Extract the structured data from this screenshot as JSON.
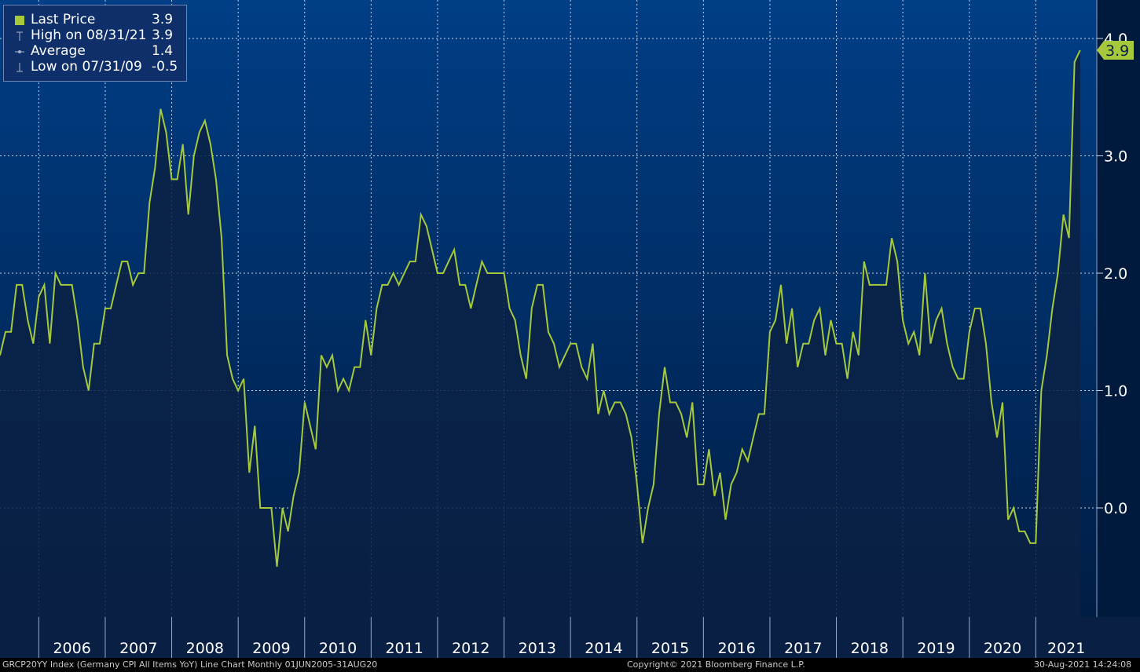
{
  "legend": {
    "items": [
      {
        "label": "Last Price",
        "value": "3.9",
        "icon": "filled-square-icon"
      },
      {
        "label": "High on 08/31/21",
        "value": "3.9",
        "icon": "high-marker-icon"
      },
      {
        "label": "Average",
        "value": "1.4",
        "icon": "average-marker-icon"
      },
      {
        "label": "Low on 07/31/09",
        "value": "-0.5",
        "icon": "low-marker-icon"
      }
    ]
  },
  "footer": {
    "left": "GRCP20YY Index (Germany CPI All Items YoY) Line Chart  Monthly 01JUN2005-31AUG20",
    "center": "Copyright© 2021 Bloomberg Finance L.P.",
    "right": "30-Aug-2021 14:24:08"
  },
  "colors": {
    "line": "#a6c93c",
    "background_top": "#003e86",
    "background_bottom": "#001f46",
    "fill": "#0b2144",
    "axis_bg": "#0a1f44"
  },
  "chart_data": {
    "type": "area",
    "title": "",
    "xlabel": "",
    "ylabel": "",
    "x_start": "2005-06",
    "x_end": "2021-08",
    "x_ticks": [
      "2006",
      "2007",
      "2008",
      "2009",
      "2010",
      "2011",
      "2012",
      "2013",
      "2014",
      "2015",
      "2016",
      "2017",
      "2018",
      "2019",
      "2020",
      "2021"
    ],
    "y_ticks": [
      "0.0",
      "1.0",
      "2.0",
      "3.0",
      "4.0"
    ],
    "ylim": [
      -0.9,
      4.2
    ],
    "grid": true,
    "y_axis_side": "right",
    "last_value_label": "3.9",
    "series": [
      {
        "name": "Last Price",
        "values": [
          1.3,
          1.5,
          1.5,
          1.9,
          1.9,
          1.6,
          1.4,
          1.8,
          1.9,
          1.4,
          2.0,
          1.9,
          1.9,
          1.9,
          1.6,
          1.2,
          1.0,
          1.4,
          1.4,
          1.7,
          1.7,
          1.9,
          2.1,
          2.1,
          1.9,
          2.0,
          2.0,
          2.6,
          2.9,
          3.4,
          3.2,
          2.8,
          2.8,
          3.1,
          2.5,
          3.0,
          3.2,
          3.3,
          3.1,
          2.8,
          2.3,
          1.3,
          1.1,
          1.0,
          1.1,
          0.3,
          0.7,
          0.0,
          0.0,
          0.0,
          -0.5,
          0.0,
          -0.2,
          0.1,
          0.3,
          0.9,
          0.7,
          0.5,
          1.3,
          1.2,
          1.3,
          1.0,
          1.1,
          1.0,
          1.2,
          1.2,
          1.6,
          1.3,
          1.7,
          1.9,
          1.9,
          2.0,
          1.9,
          2.0,
          2.1,
          2.1,
          2.5,
          2.4,
          2.2,
          2.0,
          2.0,
          2.1,
          2.2,
          1.9,
          1.9,
          1.7,
          1.9,
          2.1,
          2.0,
          2.0,
          2.0,
          2.0,
          1.7,
          1.6,
          1.3,
          1.1,
          1.7,
          1.9,
          1.9,
          1.5,
          1.4,
          1.2,
          1.3,
          1.4,
          1.4,
          1.2,
          1.1,
          1.4,
          0.8,
          1.0,
          0.8,
          0.9,
          0.9,
          0.8,
          0.6,
          0.2,
          -0.3,
          0.0,
          0.2,
          0.8,
          1.2,
          0.9,
          0.9,
          0.8,
          0.6,
          0.9,
          0.2,
          0.2,
          0.5,
          0.1,
          0.3,
          -0.1,
          0.2,
          0.3,
          0.5,
          0.4,
          0.6,
          0.8,
          0.8,
          1.5,
          1.6,
          1.9,
          1.4,
          1.7,
          1.2,
          1.4,
          1.4,
          1.6,
          1.7,
          1.3,
          1.6,
          1.4,
          1.4,
          1.1,
          1.5,
          1.3,
          2.1,
          1.9,
          1.9,
          1.9,
          1.9,
          2.3,
          2.1,
          1.6,
          1.4,
          1.5,
          1.3,
          2.0,
          1.4,
          1.6,
          1.7,
          1.4,
          1.2,
          1.1,
          1.1,
          1.5,
          1.7,
          1.7,
          1.4,
          0.9,
          0.6,
          0.9,
          -0.1,
          0.0,
          -0.2,
          -0.2,
          -0.3,
          -0.3,
          1.0,
          1.3,
          1.7,
          2.0,
          2.5,
          2.3,
          3.8,
          3.9
        ]
      }
    ]
  }
}
